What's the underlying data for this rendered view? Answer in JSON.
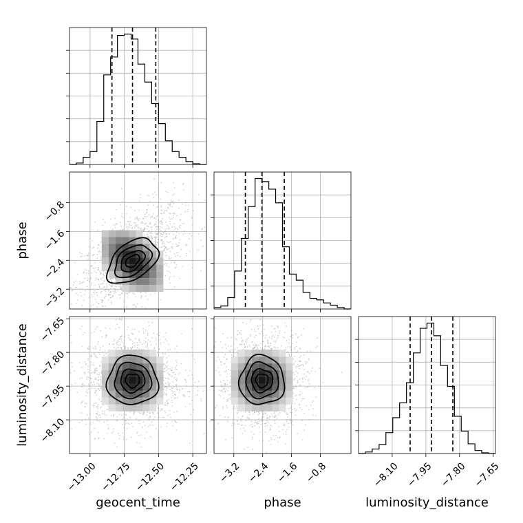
{
  "chart_data": {
    "type": "corner",
    "parameters": [
      "geocent_time",
      "phase",
      "luminosity_distance"
    ],
    "ranges": {
      "geocent_time": [
        -13.15,
        -12.15
      ],
      "phase": [
        -3.75,
        0.05
      ],
      "luminosity_distance": [
        -8.25,
        -7.64
      ]
    },
    "ticks": {
      "geocent_time": [
        -13.0,
        -12.75,
        -12.5,
        -12.25
      ],
      "phase": [
        -3.2,
        -2.4,
        -1.6,
        -0.8
      ],
      "luminosity_distance": [
        -8.1,
        -7.95,
        -7.8,
        -7.65
      ]
    },
    "tick_labels": {
      "geocent_time": [
        "−13.00",
        "−12.75",
        "−12.50",
        "−12.25"
      ],
      "phase": [
        "−3.2",
        "−2.4",
        "−1.6",
        "−0.8"
      ],
      "luminosity_distance": [
        "−8.10",
        "−7.95",
        "−7.80",
        "−7.65"
      ]
    },
    "quantiles": {
      "geocent_time": [
        -12.84,
        -12.69,
        -12.52
      ],
      "phase": [
        -2.88,
        -2.42,
        -1.8
      ],
      "luminosity_distance": [
        -8.02,
        -7.925,
        -7.83
      ]
    },
    "histograms": {
      "geocent_time": {
        "edges": [
          -13.15,
          -13.1,
          -13.05,
          -13.0,
          -12.95,
          -12.9,
          -12.85,
          -12.8,
          -12.75,
          -12.7,
          -12.65,
          -12.6,
          -12.55,
          -12.5,
          -12.45,
          -12.4,
          -12.35,
          -12.3,
          -12.25,
          -12.2,
          -12.15
        ],
        "counts": [
          0,
          2,
          10,
          18,
          60,
          125,
          150,
          180,
          182,
          175,
          140,
          115,
          85,
          57,
          33,
          18,
          10,
          4,
          1,
          0
        ]
      },
      "phase": {
        "edges": [
          -3.75,
          -3.56,
          -3.37,
          -3.18,
          -2.99,
          -2.8,
          -2.61,
          -2.42,
          -2.23,
          -2.04,
          -1.85,
          -1.66,
          -1.47,
          -1.28,
          -1.09,
          -0.9,
          -0.71,
          -0.52,
          -0.33,
          -0.14,
          0.05
        ],
        "counts": [
          2,
          4,
          15,
          50,
          93,
          135,
          172,
          168,
          158,
          140,
          82,
          46,
          38,
          22,
          14,
          12,
          8,
          5,
          2,
          0
        ]
      },
      "luminosity_distance": {
        "edges": [
          -8.25,
          -8.2195,
          -8.189,
          -8.1585,
          -8.128,
          -8.0975,
          -8.067,
          -8.0365,
          -8.006,
          -7.9755,
          -7.945,
          -7.9145,
          -7.884,
          -7.8535,
          -7.823,
          -7.7925,
          -7.762,
          -7.7315,
          -7.701,
          -7.6705,
          -7.64
        ],
        "counts": [
          0,
          2,
          6,
          12,
          28,
          48,
          68,
          95,
          135,
          168,
          175,
          158,
          118,
          90,
          50,
          30,
          13,
          4,
          1,
          0
        ]
      }
    },
    "points_shown": true,
    "contours_shown": true,
    "grid": true
  }
}
